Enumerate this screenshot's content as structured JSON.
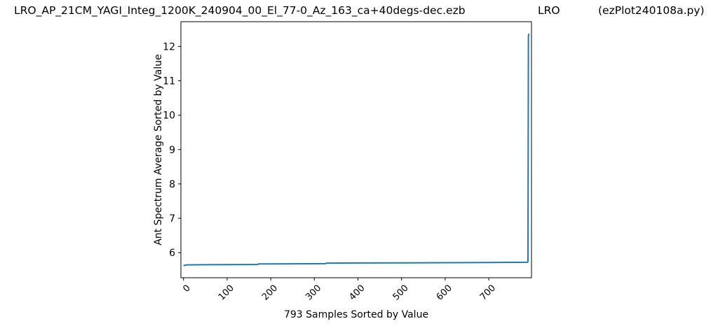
{
  "title": {
    "left": "LRO_AP_21CM_YAGI_Integ_1200K_240904_00_El_77-0_Az_163_ca+40degs-dec.ezb",
    "middle": "LRO",
    "right": "(ezPlot240108a.py)"
  },
  "chart_data": {
    "type": "line",
    "xlabel": "793 Samples Sorted by Value",
    "ylabel": "Ant Spectrum Average Sorted by Value",
    "xlim": [
      -6,
      798
    ],
    "ylim": [
      5.27,
      12.72
    ],
    "xticks": [
      0,
      100,
      200,
      300,
      400,
      500,
      600,
      700
    ],
    "yticks": [
      6,
      7,
      8,
      9,
      10,
      11,
      12
    ],
    "grid": false,
    "legend": "none",
    "series": [
      {
        "color": "#1f77b4",
        "x": [
          0,
          5,
          10,
          50,
          100,
          150,
          170,
          172,
          200,
          250,
          300,
          325,
          328,
          400,
          500,
          600,
          700,
          789,
          790,
          791,
          792
        ],
        "y": [
          5.62,
          5.64,
          5.645,
          5.648,
          5.652,
          5.655,
          5.656,
          5.67,
          5.673,
          5.676,
          5.678,
          5.68,
          5.695,
          5.699,
          5.703,
          5.707,
          5.712,
          5.72,
          5.75,
          12.3,
          12.37
        ]
      }
    ]
  }
}
